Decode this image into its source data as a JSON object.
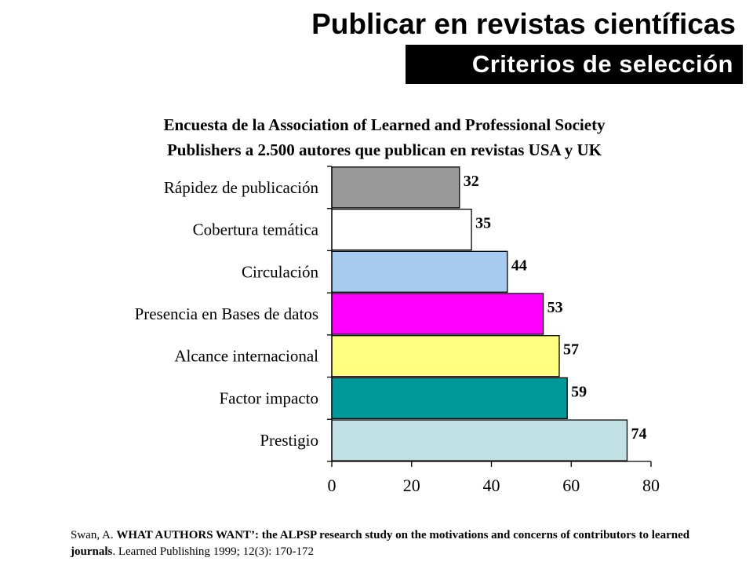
{
  "header": {
    "title": "Publicar en revistas científicas",
    "subtitle": "Criterios de selección"
  },
  "chart_data": {
    "type": "bar",
    "orientation": "horizontal",
    "title": [
      "Encuesta de la Association of Learned and Professional Society",
      "Publishers a 2.500 autores que publican en revistas USA y UK"
    ],
    "categories": [
      "Rápidez de publicación",
      "Cobertura temática",
      "Circulación",
      "Presencia en Bases de datos",
      "Alcance internacional",
      "Factor impacto",
      "Prestigio"
    ],
    "values": [
      32,
      35,
      44,
      53,
      57,
      59,
      74
    ],
    "colors": [
      "#999999",
      "#ffffff",
      "#a6caf0",
      "#ff00ff",
      "#ffff80",
      "#009999",
      "#c0e0e4"
    ],
    "xlim": [
      0,
      80
    ],
    "xticks": [
      0,
      20,
      40,
      60,
      80
    ],
    "xlabel": "",
    "ylabel": "",
    "grid": false,
    "data_labels": true
  },
  "citation": {
    "part1": "Swan, A. ",
    "part2": "WHAT AUTHORS WANT’: the ALPSP research study on the motivations and concerns of contributors to learned journals",
    "part3": ". Learned Publishing 1999; 12(3): 170-172"
  }
}
